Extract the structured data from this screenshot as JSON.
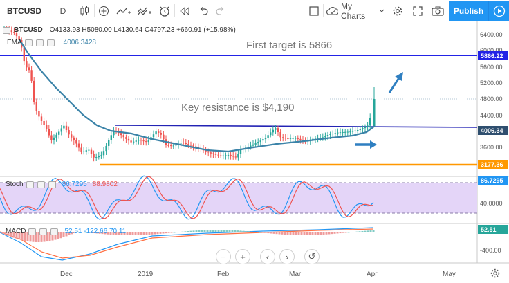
{
  "toolbar": {
    "symbol": "BTCUSD",
    "interval": "D",
    "my_charts_label": "My Charts",
    "publish_label": "Publish"
  },
  "legend": {
    "symbol": "BTCUSD",
    "ohlc": "O4133.93  H5080.00  L4130.64  C4797.23  +660.91 (+15.98%)",
    "ema_label": "EMA",
    "ema_value": "4006.3428",
    "stoch_label": "Stoch",
    "stoch_k": "86.7295",
    "stoch_d": "88.9802",
    "macd_label": "MACD",
    "macd_values": "52.51  -122.66  70.11"
  },
  "annotations": {
    "target": "First target is 5866",
    "resistance": "Key resistance is $4,190"
  },
  "price_axis": {
    "ticks": [
      "6400.00",
      "6000.00",
      "5600.00",
      "5200.00",
      "4800.00",
      "4400.00",
      "3600.00"
    ],
    "tags": {
      "target": "5866.22",
      "ema": "4006.34",
      "support": "3177.36"
    }
  },
  "stoch_axis": {
    "tag": "86.7295",
    "tick": "40.0000"
  },
  "macd_axis": {
    "tag": "52.51",
    "tick": "-400.00"
  },
  "time_axis": [
    "Dec",
    "2019",
    "Feb",
    "Mar",
    "Apr",
    "May"
  ],
  "colors": {
    "up": "#26a69a",
    "down": "#ef5350",
    "ema": "#3b83a8",
    "target_line": "#2323e6",
    "resistance_line": "#2323b4",
    "support_line": "#ff9800",
    "stoch_k": "#2196f3",
    "stoch_d": "#ef5350",
    "stoch_band": "#d9c6f6",
    "arrow": "#2f7fc1",
    "publish": "#2196f3"
  }
}
